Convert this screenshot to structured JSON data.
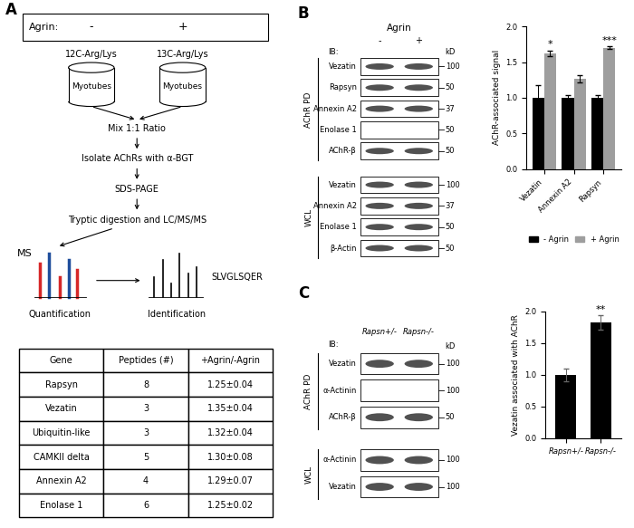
{
  "panels": {
    "A": {
      "label": "A",
      "agrin_label": "Agrin:",
      "conditions": [
        "-",
        "+"
      ],
      "isotopes": [
        "12C-Arg/Lys",
        "13C-Arg/Lys"
      ],
      "cells": "Myotubes",
      "steps": [
        "Mix 1:1 Ratio",
        "Isolate AChRs with α-BGT",
        "SDS-PAGE",
        "Tryptic digestion and LC/MS/MS"
      ],
      "ms": "MS",
      "quantification": "Quantification",
      "identification": "Identification",
      "peptide": "SLVGLSQER",
      "table": {
        "header": [
          "Gene",
          "Peptides (#)",
          "+Agrin/-Agrin"
        ],
        "rows": [
          [
            "Rapsyn",
            8,
            "1.25±0.04"
          ],
          [
            "Vezatin",
            3,
            "1.35±0.04"
          ],
          [
            "Ubiquitin-like",
            3,
            "1.32±0.04"
          ],
          [
            "CAMKII delta",
            5,
            "1.30±0.08"
          ],
          [
            "Annexin A2",
            4,
            "1.29±0.07"
          ],
          [
            "Enolase 1",
            6,
            "1.25±0.02"
          ]
        ]
      }
    },
    "B": {
      "label": "B",
      "treatment": "Agrin",
      "lanes": [
        "-",
        "+"
      ],
      "ib": "IB:",
      "kd": "kD",
      "groups": [
        {
          "name": "AChR PD",
          "rows": [
            {
              "protein": "Vezatin",
              "marker": 100
            },
            {
              "protein": "Rapsyn",
              "marker": 50
            },
            {
              "protein": "Annexin A2",
              "marker": 37
            },
            {
              "protein": "Enolase 1",
              "marker": 50
            },
            {
              "protein": "AChR-β",
              "marker": 50
            }
          ]
        },
        {
          "name": "WCL",
          "rows": [
            {
              "protein": "Vezatin",
              "marker": 100
            },
            {
              "protein": "Annexin A2",
              "marker": 37
            },
            {
              "protein": "Enolase 1",
              "marker": 50
            },
            {
              "protein": "β-Actin",
              "marker": 50
            }
          ]
        }
      ]
    },
    "C": {
      "label": "C",
      "lanes": [
        "Rapsn+/-",
        "Rapsn-/-"
      ],
      "ib": "IB:",
      "kd": "kD",
      "groups": [
        {
          "name": "AChR PD",
          "rows": [
            {
              "protein": "Vezatin",
              "marker": 100
            },
            {
              "protein": "α-Actinin",
              "marker": 100
            },
            {
              "protein": "AChR-β",
              "marker": 50
            }
          ]
        },
        {
          "name": "WCL",
          "rows": [
            {
              "protein": "α-Actinin",
              "marker": 100
            },
            {
              "protein": "Vezatin",
              "marker": 100
            }
          ]
        }
      ]
    }
  },
  "chart_data": [
    {
      "type": "bar",
      "y_label": "AChR-associated signal",
      "categories": [
        "Vezatin",
        "Annexin A2",
        "Rapsyn"
      ],
      "series": [
        {
          "name": "- Agrin",
          "color": "#000000",
          "values": [
            1.0,
            1.0,
            1.0
          ],
          "errors": [
            0.17,
            0.04,
            0.04
          ]
        },
        {
          "name": "+ Agrin",
          "color": "#9e9e9e",
          "values": [
            1.62,
            1.26,
            1.7
          ],
          "errors": [
            0.04,
            0.05,
            0.02
          ]
        }
      ],
      "annotations": [
        {
          "category": "Vezatin",
          "series": "+ Agrin",
          "text": "*"
        },
        {
          "category": "Rapsyn",
          "series": "+ Agrin",
          "text": "***"
        }
      ],
      "ylim": [
        0,
        2.0
      ],
      "yticks": [
        {
          "value": 0,
          "label": "0.0"
        },
        {
          "value": 0.5,
          "label": "0.5"
        },
        {
          "value": 1.0,
          "label": "1.0"
        },
        {
          "value": 1.5,
          "label": "1.5"
        },
        {
          "value": 2.0,
          "label": "2.0"
        }
      ],
      "legend": "bottom"
    },
    {
      "type": "bar",
      "y_label": "Vezatin associated with AChR",
      "categories": [
        "Rapsn+/-",
        "Rapsn-/-"
      ],
      "values": [
        1.0,
        1.83
      ],
      "errors": [
        0.1,
        0.11
      ],
      "color": "#000000",
      "annotations": [
        {
          "category": "Rapsn-/-",
          "text": "**"
        }
      ],
      "ylim": [
        0,
        2.0
      ],
      "yticks": [
        {
          "value": 0,
          "label": "0.0"
        },
        {
          "value": 0.5,
          "label": "0.5"
        },
        {
          "value": 1.0,
          "label": "1.0"
        },
        {
          "value": 1.5,
          "label": "1.5"
        },
        {
          "value": 2.0,
          "label": "2.0"
        }
      ]
    }
  ]
}
